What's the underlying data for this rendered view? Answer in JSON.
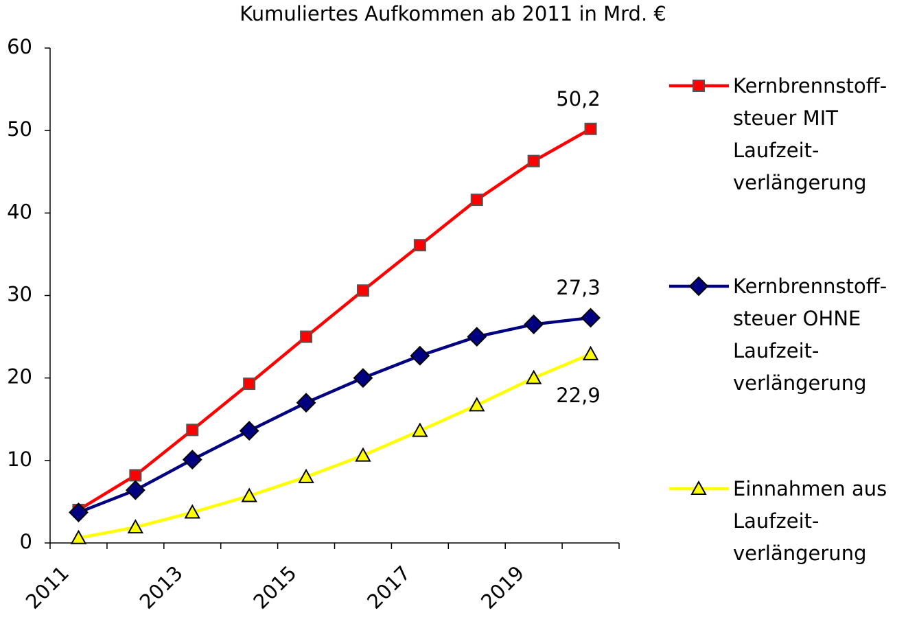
{
  "chart_data": {
    "type": "line",
    "title": "Kumuliertes Aufkommen ab 2011 in Mrd. €",
    "categories": [
      "2011",
      null,
      "2013",
      null,
      "2015",
      null,
      "2017",
      null,
      "2019",
      null
    ],
    "series": [
      {
        "name": "Kernbrennstoff-steuer MIT Laufzeit-verlängerung",
        "color": "#ff0000",
        "marker": "square",
        "marker_edge": "#555555",
        "values": [
          4,
          8.2,
          13.7,
          19.3,
          25,
          30.6,
          36.1,
          41.6,
          46.3,
          50.2
        ],
        "value_labels": [
          null,
          null,
          null,
          null,
          null,
          null,
          null,
          null,
          null,
          "50,2"
        ]
      },
      {
        "name": "Kernbrennstoff-steuer OHNE Laufzeit-verlängerung",
        "color": "#000080",
        "marker": "diamond",
        "marker_edge": "#000000",
        "values": [
          3.7,
          6.4,
          10.1,
          13.6,
          17,
          20,
          22.7,
          25,
          26.5,
          27.3
        ],
        "value_labels": [
          null,
          null,
          null,
          null,
          null,
          null,
          null,
          null,
          null,
          "27,3"
        ]
      },
      {
        "name": "Einnahmen aus Laufzeit-verlängerung",
        "color": "#ffff00",
        "marker": "triangle",
        "marker_edge": "#000000",
        "values": [
          0.6,
          1.9,
          3.7,
          5.7,
          8,
          10.6,
          13.6,
          16.7,
          20,
          22.9
        ],
        "value_labels": [
          null,
          null,
          null,
          null,
          null,
          null,
          null,
          null,
          null,
          "22,9"
        ]
      }
    ],
    "ylim": [
      0,
      60
    ],
    "yticks": [
      0,
      10,
      20,
      30,
      40,
      50,
      60
    ],
    "grid": false,
    "legend": "right"
  }
}
